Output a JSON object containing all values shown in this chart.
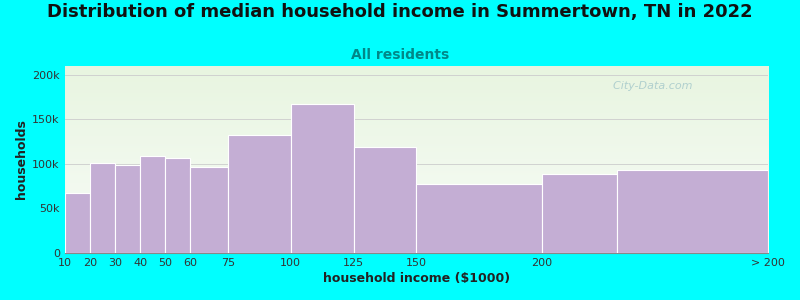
{
  "title": "Distribution of median household income in Summertown, TN in 2022",
  "subtitle": "All residents",
  "xlabel": "household income ($1000)",
  "ylabel": "households",
  "background_color": "#00FFFF",
  "plot_bg_gradient_top": "#e8f5e0",
  "plot_bg_gradient_bottom": "#f8fcf8",
  "bar_color": "#c4aed4",
  "bar_edge_color": "#ffffff",
  "bin_left_edges": [
    10,
    20,
    30,
    40,
    50,
    60,
    75,
    100,
    125,
    150,
    200,
    230
  ],
  "bin_widths": [
    10,
    10,
    10,
    10,
    10,
    15,
    25,
    25,
    25,
    50,
    30,
    60
  ],
  "values": [
    67000,
    101000,
    99000,
    109000,
    107000,
    96000,
    132000,
    167000,
    119000,
    77000,
    89000,
    93000
  ],
  "xtick_positions": [
    10,
    20,
    30,
    40,
    50,
    60,
    75,
    100,
    125,
    150,
    200,
    290
  ],
  "xtick_labels": [
    "10",
    "20",
    "30",
    "40",
    "50",
    "60",
    "75",
    "100",
    "125",
    "150",
    "200",
    "> 200"
  ],
  "ylim": [
    0,
    210000
  ],
  "yticks": [
    0,
    50000,
    100000,
    150000,
    200000
  ],
  "ytick_labels": [
    "0",
    "50k",
    "100k",
    "150k",
    "200k"
  ],
  "title_fontsize": 13,
  "subtitle_fontsize": 10,
  "subtitle_color": "#008888",
  "axis_label_fontsize": 9,
  "tick_fontsize": 8,
  "watermark_text": "  City-Data.com",
  "watermark_color": "#aacccc"
}
